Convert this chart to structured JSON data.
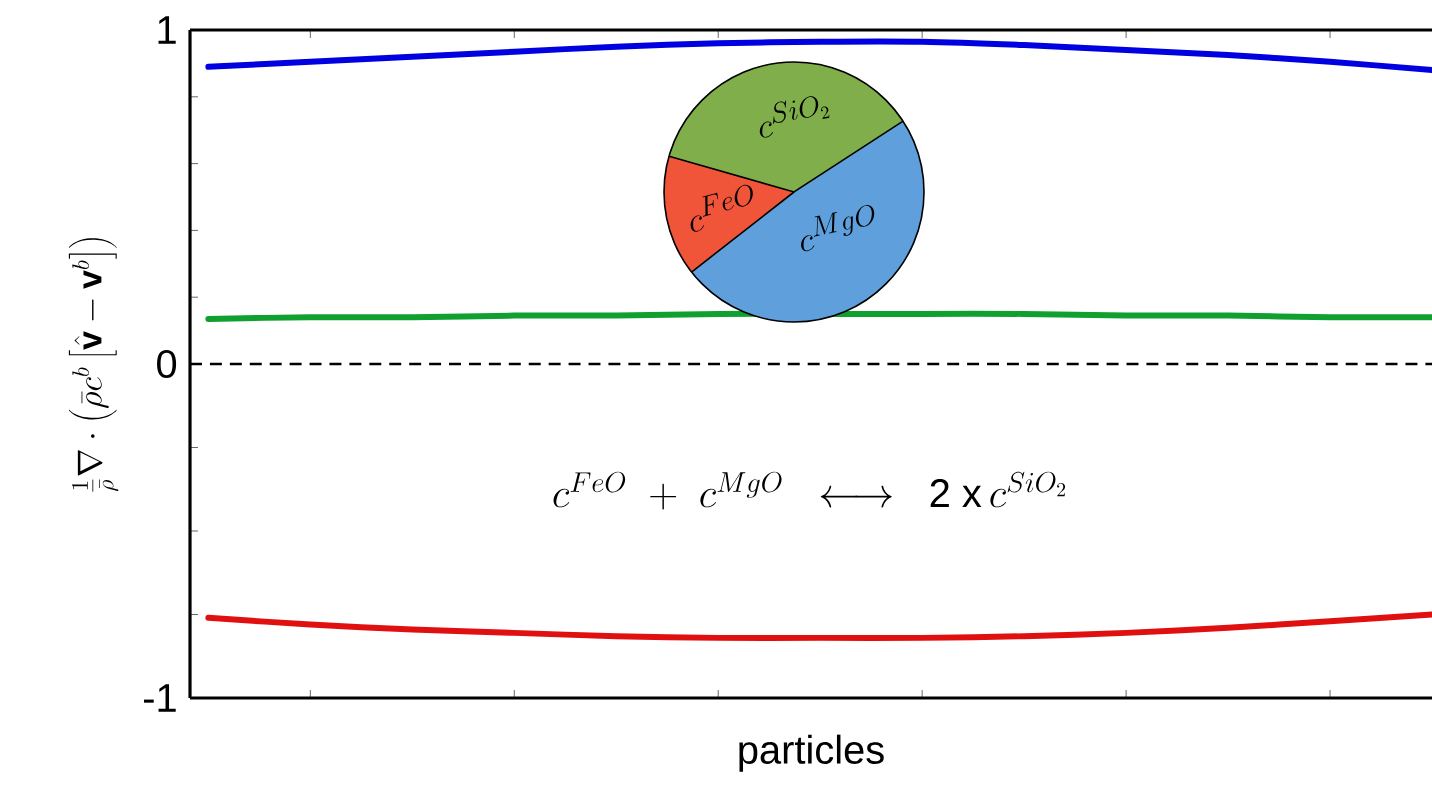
{
  "chart_data": {
    "type": "line",
    "xlabel": "particles",
    "ylabel": "\\frac{1}{\\bar{\\rho}}\\nabla\\cdot\\left(\\bar{\\rho}c^{b}\\left[\\hat{\\mathbf{v}}-\\mathbf{v}^{b}\\right]\\right)",
    "categories": [
      null,
      null,
      null,
      null,
      null,
      null,
      null,
      null,
      null,
      null,
      null,
      null,
      null
    ],
    "series": [
      {
        "color": "#0000e0",
        "values": [
          0.89,
          0.905,
          0.92,
          0.935,
          0.95,
          0.96,
          0.965,
          0.965,
          0.955,
          0.94,
          0.925,
          0.905,
          0.88
        ]
      },
      {
        "color": "#10a030",
        "values": [
          0.135,
          0.14,
          0.14,
          0.145,
          0.145,
          0.15,
          0.15,
          0.15,
          0.15,
          0.145,
          0.145,
          0.14,
          0.14
        ]
      },
      {
        "color": "#e01010",
        "values": [
          -0.76,
          -0.78,
          -0.795,
          -0.805,
          -0.815,
          -0.82,
          -0.82,
          -0.82,
          -0.815,
          -0.805,
          -0.79,
          -0.77,
          -0.75
        ]
      }
    ],
    "ylim": [
      -1,
      1
    ],
    "yticks": [
      -1,
      {
        "value": -0.75,
        "label": null
      },
      {
        "value": -0.5,
        "label": null
      },
      {
        "value": -0.25,
        "label": null
      },
      0,
      {
        "value": 0.2,
        "label": null
      },
      {
        "value": 0.4,
        "label": null
      },
      {
        "value": 0.6,
        "label": null
      },
      {
        "value": 0.8,
        "label": null
      },
      1
    ],
    "ref_lines": [
      {
        "axis": "y",
        "value": 0,
        "color": "#000000",
        "line_style": "dashed"
      }
    ],
    "annotations": [
      "c^{FeO}\\;+\\;c^{MgO}\\;\\;\\longleftrightarrow\\;\\;\\textsf{2 x}\\,c^{SiO_2}",
      "c^{SiO_2}",
      "c^{FeO}",
      "c^{MgO}"
    ]
  }
}
